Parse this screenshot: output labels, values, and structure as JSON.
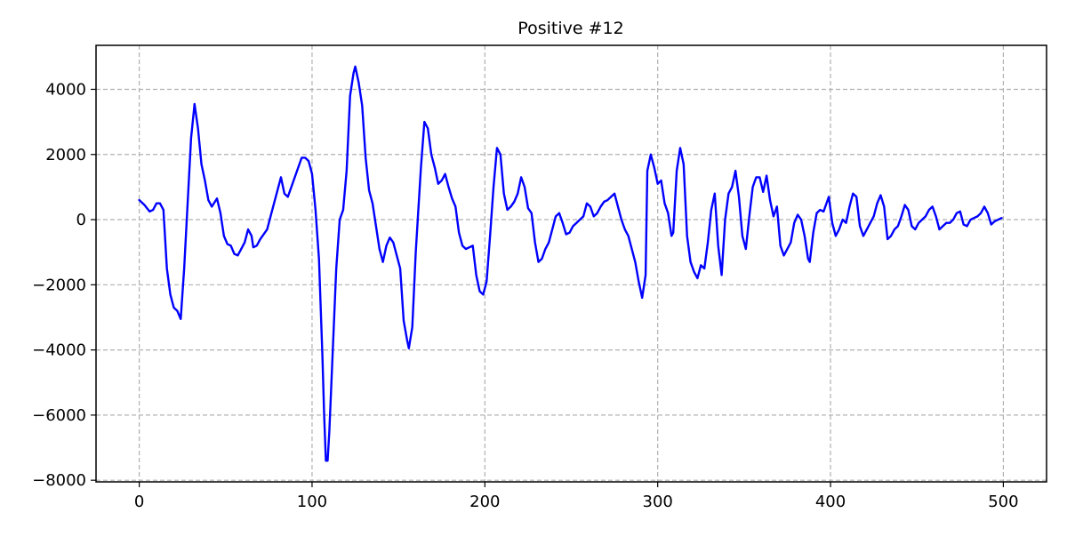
{
  "chart_data": {
    "type": "line",
    "title": "Positive #12",
    "xlabel": "",
    "ylabel": "",
    "xlim": [
      -25,
      525
    ],
    "ylim": [
      -8050,
      5350
    ],
    "grid": true,
    "legend": "none",
    "x_ticks": [
      0,
      100,
      200,
      300,
      400,
      500
    ],
    "y_ticks": [
      -8000,
      -6000,
      -4000,
      -2000,
      0,
      2000,
      4000
    ],
    "x_tick_labels": [
      "0",
      "100",
      "200",
      "300",
      "400",
      "500"
    ],
    "y_tick_labels": [
      "−8000",
      "−6000",
      "−4000",
      "−2000",
      "0",
      "2000",
      "4000"
    ],
    "series": [
      {
        "color": "#0000ff",
        "points": [
          [
            0,
            600
          ],
          [
            3,
            450
          ],
          [
            6,
            250
          ],
          [
            8,
            300
          ],
          [
            10,
            500
          ],
          [
            12,
            500
          ],
          [
            14,
            300
          ],
          [
            16,
            -1500
          ],
          [
            18,
            -2300
          ],
          [
            20,
            -2700
          ],
          [
            22,
            -2800
          ],
          [
            24,
            -3050
          ],
          [
            26,
            -1500
          ],
          [
            28,
            500
          ],
          [
            30,
            2500
          ],
          [
            32,
            3550
          ],
          [
            34,
            2800
          ],
          [
            36,
            1700
          ],
          [
            38,
            1200
          ],
          [
            40,
            600
          ],
          [
            42,
            400
          ],
          [
            45,
            650
          ],
          [
            47,
            200
          ],
          [
            49,
            -500
          ],
          [
            51,
            -750
          ],
          [
            53,
            -800
          ],
          [
            55,
            -1050
          ],
          [
            57,
            -1100
          ],
          [
            59,
            -900
          ],
          [
            61,
            -700
          ],
          [
            63,
            -300
          ],
          [
            65,
            -500
          ],
          [
            66,
            -850
          ],
          [
            68,
            -800
          ],
          [
            70,
            -600
          ],
          [
            72,
            -450
          ],
          [
            74,
            -300
          ],
          [
            76,
            100
          ],
          [
            78,
            500
          ],
          [
            80,
            900
          ],
          [
            82,
            1300
          ],
          [
            84,
            800
          ],
          [
            86,
            700
          ],
          [
            88,
            1000
          ],
          [
            90,
            1300
          ],
          [
            92,
            1600
          ],
          [
            94,
            1900
          ],
          [
            96,
            1900
          ],
          [
            98,
            1800
          ],
          [
            100,
            1400
          ],
          [
            102,
            300
          ],
          [
            104,
            -1200
          ],
          [
            106,
            -4200
          ],
          [
            107,
            -6000
          ],
          [
            108,
            -7400
          ],
          [
            109,
            -7400
          ],
          [
            110,
            -6500
          ],
          [
            112,
            -4000
          ],
          [
            114,
            -1500
          ],
          [
            116,
            0
          ],
          [
            118,
            300
          ],
          [
            120,
            1500
          ],
          [
            122,
            3800
          ],
          [
            124,
            4500
          ],
          [
            125,
            4700
          ],
          [
            127,
            4200
          ],
          [
            129,
            3500
          ],
          [
            131,
            1900
          ],
          [
            133,
            900
          ],
          [
            135,
            500
          ],
          [
            137,
            -200
          ],
          [
            139,
            -900
          ],
          [
            141,
            -1300
          ],
          [
            143,
            -800
          ],
          [
            145,
            -550
          ],
          [
            147,
            -700
          ],
          [
            149,
            -1100
          ],
          [
            151,
            -1500
          ],
          [
            153,
            -3100
          ],
          [
            155,
            -3700
          ],
          [
            156,
            -3950
          ],
          [
            158,
            -3300
          ],
          [
            160,
            -1000
          ],
          [
            163,
            1600
          ],
          [
            165,
            3000
          ],
          [
            167,
            2800
          ],
          [
            169,
            2000
          ],
          [
            171,
            1600
          ],
          [
            173,
            1100
          ],
          [
            175,
            1200
          ],
          [
            177,
            1400
          ],
          [
            179,
            1000
          ],
          [
            181,
            650
          ],
          [
            183,
            400
          ],
          [
            185,
            -400
          ],
          [
            187,
            -800
          ],
          [
            189,
            -900
          ],
          [
            191,
            -850
          ],
          [
            193,
            -800
          ],
          [
            195,
            -1700
          ],
          [
            197,
            -2200
          ],
          [
            199,
            -2300
          ],
          [
            201,
            -1900
          ],
          [
            203,
            -500
          ],
          [
            205,
            1000
          ],
          [
            207,
            2200
          ],
          [
            209,
            2000
          ],
          [
            211,
            800
          ],
          [
            213,
            300
          ],
          [
            215,
            400
          ],
          [
            217,
            550
          ],
          [
            219,
            800
          ],
          [
            221,
            1300
          ],
          [
            223,
            1000
          ],
          [
            225,
            350
          ],
          [
            227,
            200
          ],
          [
            229,
            -700
          ],
          [
            231,
            -1300
          ],
          [
            233,
            -1200
          ],
          [
            235,
            -900
          ],
          [
            237,
            -700
          ],
          [
            239,
            -300
          ],
          [
            241,
            100
          ],
          [
            243,
            200
          ],
          [
            245,
            -100
          ],
          [
            247,
            -450
          ],
          [
            249,
            -400
          ],
          [
            251,
            -200
          ],
          [
            253,
            -100
          ],
          [
            255,
            0
          ],
          [
            257,
            100
          ],
          [
            259,
            500
          ],
          [
            261,
            400
          ],
          [
            263,
            100
          ],
          [
            265,
            200
          ],
          [
            267,
            400
          ],
          [
            269,
            550
          ],
          [
            271,
            600
          ],
          [
            273,
            700
          ],
          [
            275,
            800
          ],
          [
            277,
            400
          ],
          [
            279,
            0
          ],
          [
            281,
            -300
          ],
          [
            283,
            -500
          ],
          [
            285,
            -900
          ],
          [
            287,
            -1300
          ],
          [
            289,
            -1900
          ],
          [
            291,
            -2400
          ],
          [
            293,
            -1700
          ],
          [
            294,
            1500
          ],
          [
            296,
            2000
          ],
          [
            298,
            1600
          ],
          [
            300,
            1100
          ],
          [
            302,
            1200
          ],
          [
            304,
            500
          ],
          [
            306,
            200
          ],
          [
            308,
            -500
          ],
          [
            309,
            -400
          ],
          [
            311,
            1500
          ],
          [
            313,
            2200
          ],
          [
            315,
            1700
          ],
          [
            317,
            -500
          ],
          [
            319,
            -1300
          ],
          [
            321,
            -1600
          ],
          [
            323,
            -1800
          ],
          [
            325,
            -1400
          ],
          [
            327,
            -1500
          ],
          [
            329,
            -700
          ],
          [
            331,
            300
          ],
          [
            333,
            800
          ],
          [
            335,
            -800
          ],
          [
            337,
            -1700
          ],
          [
            339,
            0
          ],
          [
            341,
            800
          ],
          [
            343,
            1000
          ],
          [
            345,
            1500
          ],
          [
            347,
            700
          ],
          [
            349,
            -500
          ],
          [
            351,
            -900
          ],
          [
            353,
            100
          ],
          [
            355,
            1000
          ],
          [
            357,
            1300
          ],
          [
            359,
            1300
          ],
          [
            361,
            850
          ],
          [
            363,
            1350
          ],
          [
            365,
            600
          ],
          [
            367,
            100
          ],
          [
            369,
            400
          ],
          [
            371,
            -800
          ],
          [
            373,
            -1100
          ],
          [
            375,
            -900
          ],
          [
            377,
            -700
          ],
          [
            379,
            -100
          ],
          [
            381,
            150
          ],
          [
            383,
            0
          ],
          [
            385,
            -500
          ],
          [
            387,
            -1200
          ],
          [
            388,
            -1300
          ],
          [
            390,
            -400
          ],
          [
            392,
            200
          ],
          [
            394,
            300
          ],
          [
            396,
            250
          ],
          [
            398,
            550
          ],
          [
            399,
            700
          ],
          [
            401,
            -100
          ],
          [
            403,
            -500
          ],
          [
            405,
            -300
          ],
          [
            407,
            0
          ],
          [
            409,
            -100
          ],
          [
            411,
            400
          ],
          [
            413,
            800
          ],
          [
            415,
            700
          ],
          [
            417,
            -200
          ],
          [
            419,
            -500
          ],
          [
            421,
            -300
          ],
          [
            423,
            -100
          ],
          [
            425,
            100
          ],
          [
            427,
            500
          ],
          [
            429,
            750
          ],
          [
            431,
            400
          ],
          [
            433,
            -600
          ],
          [
            435,
            -500
          ],
          [
            437,
            -300
          ],
          [
            439,
            -200
          ],
          [
            441,
            100
          ],
          [
            443,
            450
          ],
          [
            445,
            300
          ],
          [
            447,
            -200
          ],
          [
            449,
            -300
          ],
          [
            451,
            -100
          ],
          [
            453,
            0
          ],
          [
            455,
            100
          ],
          [
            457,
            300
          ],
          [
            459,
            400
          ],
          [
            461,
            100
          ],
          [
            463,
            -300
          ],
          [
            465,
            -200
          ],
          [
            467,
            -100
          ],
          [
            469,
            -100
          ],
          [
            471,
            0
          ],
          [
            473,
            200
          ],
          [
            475,
            250
          ],
          [
            477,
            -150
          ],
          [
            479,
            -200
          ],
          [
            481,
            0
          ],
          [
            483,
            50
          ],
          [
            485,
            100
          ],
          [
            487,
            200
          ],
          [
            489,
            400
          ],
          [
            491,
            200
          ],
          [
            493,
            -150
          ],
          [
            495,
            -50
          ],
          [
            497,
            0
          ],
          [
            499,
            50
          ]
        ]
      }
    ]
  }
}
